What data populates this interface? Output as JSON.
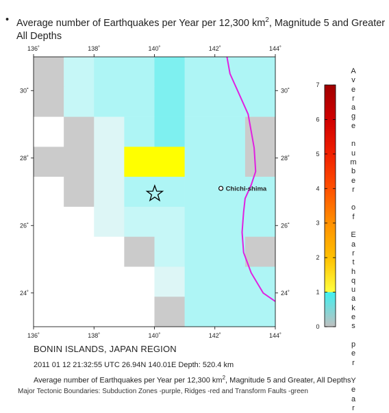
{
  "header": {
    "bullet": "•",
    "title_main": "Average number of Earthquakes per Year per 12,300 km",
    "title_sup": "2",
    "title_rest": ", Magnitude 5 and Greater",
    "title_line2": "All Depths"
  },
  "map": {
    "lon_range": [
      136,
      144
    ],
    "lat_range": [
      23,
      31
    ],
    "x_ticks": [
      136,
      138,
      140,
      142,
      144
    ],
    "y_ticks": [
      24,
      26,
      28,
      30
    ],
    "tick_suffix": "˚",
    "colors": {
      "none": "#ffffff",
      "zero": "#cbcbcb",
      "very_low": "#ddf6f6",
      "low": "#c6f7f7",
      "mid": "#aef5f5",
      "high": "#7ef0f0",
      "hot": "#ffff00"
    },
    "grid": [
      [
        "zero",
        "low",
        "mid",
        "mid",
        "high",
        "mid",
        "mid",
        "mid"
      ],
      [
        "zero",
        "low",
        "mid",
        "mid",
        "high",
        "mid",
        "mid",
        "mid"
      ],
      [
        "none",
        "zero",
        "very_low",
        "mid",
        "high",
        "mid",
        "mid",
        "zero"
      ],
      [
        "zero",
        "zero",
        "very_low",
        "hot",
        "hot",
        "mid",
        "mid",
        "zero"
      ],
      [
        "none",
        "zero",
        "very_low",
        "mid",
        "mid",
        "mid",
        "mid",
        "mid"
      ],
      [
        "none",
        "none",
        "very_low",
        "low",
        "low",
        "mid",
        "mid",
        "mid"
      ],
      [
        "none",
        "none",
        "none",
        "zero",
        "low",
        "mid",
        "mid",
        "zero"
      ],
      [
        "none",
        "none",
        "none",
        "none",
        "very_low",
        "mid",
        "mid",
        "mid"
      ],
      [
        "none",
        "none",
        "none",
        "none",
        "zero",
        "mid",
        "mid",
        "mid"
      ]
    ],
    "epicenter": {
      "lon": 140.01,
      "lat": 26.94
    },
    "station": {
      "name": "Chichi-shima",
      "lon": 142.2,
      "lat": 27.1
    },
    "subduction_zone": {
      "color": "#e020e0",
      "points": [
        [
          142.4,
          31.0
        ],
        [
          142.5,
          30.5
        ],
        [
          142.8,
          29.9
        ],
        [
          143.1,
          29.3
        ],
        [
          143.2,
          28.8
        ],
        [
          143.3,
          28.3
        ],
        [
          143.35,
          27.6
        ],
        [
          143.2,
          27.2
        ],
        [
          143.0,
          26.8
        ],
        [
          142.95,
          26.4
        ],
        [
          142.9,
          25.8
        ],
        [
          142.95,
          25.2
        ],
        [
          143.2,
          24.6
        ],
        [
          143.6,
          24.0
        ],
        [
          144.0,
          23.75
        ]
      ]
    }
  },
  "colorbar": {
    "title": "Average number of Earthquakes per Year",
    "ticks": [
      0,
      1,
      2,
      3,
      4,
      5,
      6,
      7
    ],
    "stops": [
      {
        "value": 0,
        "color": "#c0c0c0"
      },
      {
        "value": 1,
        "color": "#40f0f0"
      },
      {
        "value": 1,
        "color": "#ffff40"
      },
      {
        "value": 2,
        "color": "#ffc000"
      },
      {
        "value": 3,
        "color": "#ff9000"
      },
      {
        "value": 4,
        "color": "#ff5000"
      },
      {
        "value": 5,
        "color": "#f02000"
      },
      {
        "value": 6,
        "color": "#d00000"
      },
      {
        "value": 7,
        "color": "#a00000"
      }
    ]
  },
  "footer": {
    "region": "BONIN ISLANDS, JAPAN REGION",
    "event": "2011 01 12 21:32:55 UTC 26.94N 140.01E Depth: 520.4 km",
    "caption_main": "Average number of Earthquakes per Year per 12,300 km",
    "caption_sup": "2",
    "caption_rest": ", Magnitude 5 and Greater, All Depths",
    "boundaries": "Major Tectonic Boundaries: Subduction Zones -purple, Ridges -red and Transform Faults -green"
  }
}
